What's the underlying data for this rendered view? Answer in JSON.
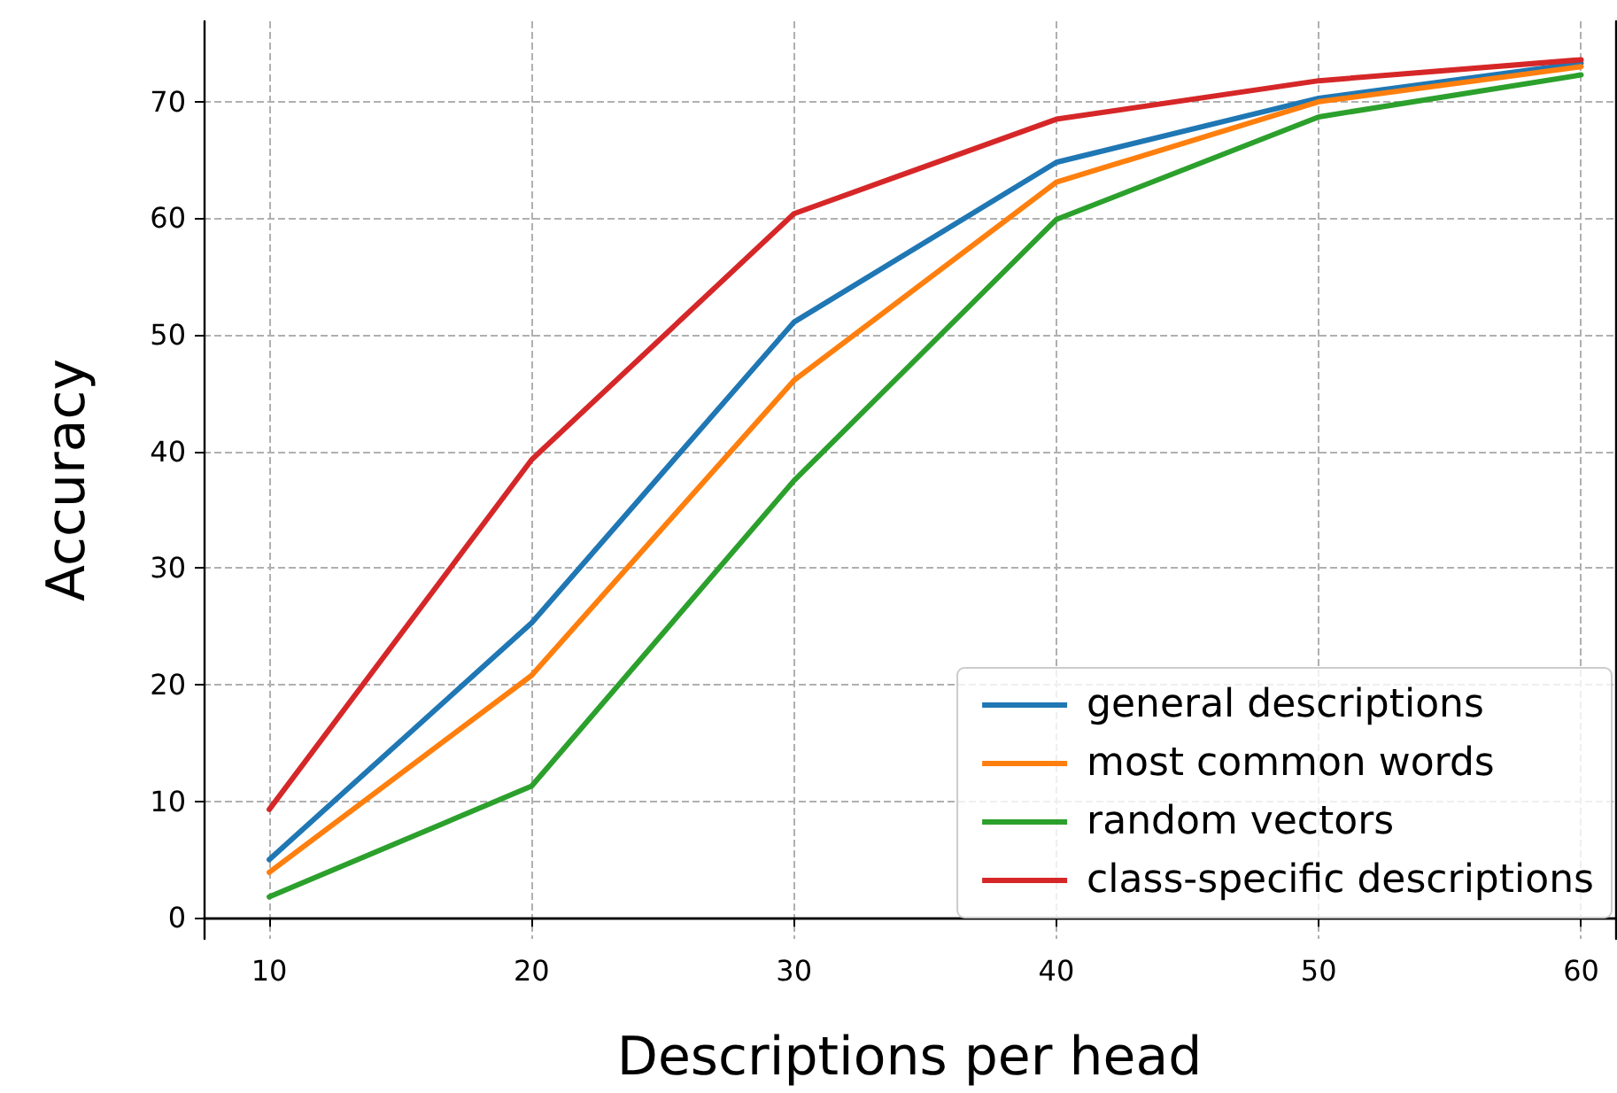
{
  "chart_data": {
    "type": "line",
    "xlabel": "Descriptions per head",
    "ylabel": "Accuracy",
    "x": [
      10,
      20,
      30,
      40,
      50,
      60
    ],
    "series": [
      {
        "name": "general descriptions",
        "color": "#1f77b4",
        "values": [
          5.0,
          25.3,
          51.1,
          64.8,
          70.3,
          73.3
        ]
      },
      {
        "name": "most common words",
        "color": "#ff7f0e",
        "values": [
          3.9,
          20.8,
          46.1,
          63.1,
          70.0,
          73.0
        ]
      },
      {
        "name": "random vectors",
        "color": "#2ca02c",
        "values": [
          1.8,
          11.3,
          37.5,
          59.9,
          68.7,
          72.3
        ]
      },
      {
        "name": "class-specific descriptions",
        "color": "#d62728",
        "values": [
          9.3,
          39.3,
          60.4,
          68.5,
          71.8,
          73.6
        ]
      }
    ],
    "xlim": [
      7.5,
      61.3
    ],
    "xticks": [
      10,
      20,
      30,
      40,
      50,
      60
    ],
    "ylim": [
      -1.8,
      76.9
    ],
    "yticks": [
      0,
      10,
      20,
      30,
      40,
      50,
      60,
      70
    ],
    "grid": true,
    "legend": "bottom right",
    "marker": "none",
    "line_style": "solid"
  }
}
